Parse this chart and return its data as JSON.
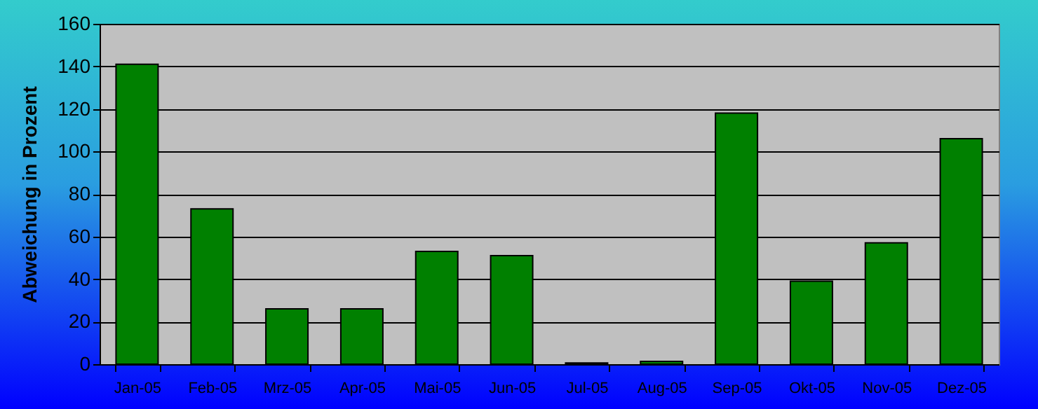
{
  "chart_data": {
    "type": "bar",
    "ylabel": "Abweichung in Prozent",
    "categories": [
      "Jan-05",
      "Feb-05",
      "Mrz-05",
      "Apr-05",
      "Mai-05",
      "Jun-05",
      "Jul-05",
      "Aug-05",
      "Sep-05",
      "Okt-05",
      "Nov-05",
      "Dez-05"
    ],
    "values": [
      141,
      73,
      26,
      26,
      53,
      51,
      0.6,
      1.3,
      118,
      39,
      57,
      106
    ],
    "color": "#008000",
    "ylim": [
      0,
      160
    ],
    "yticks": [
      0,
      20,
      40,
      60,
      80,
      100,
      120,
      140,
      160
    ],
    "grid": "y"
  }
}
